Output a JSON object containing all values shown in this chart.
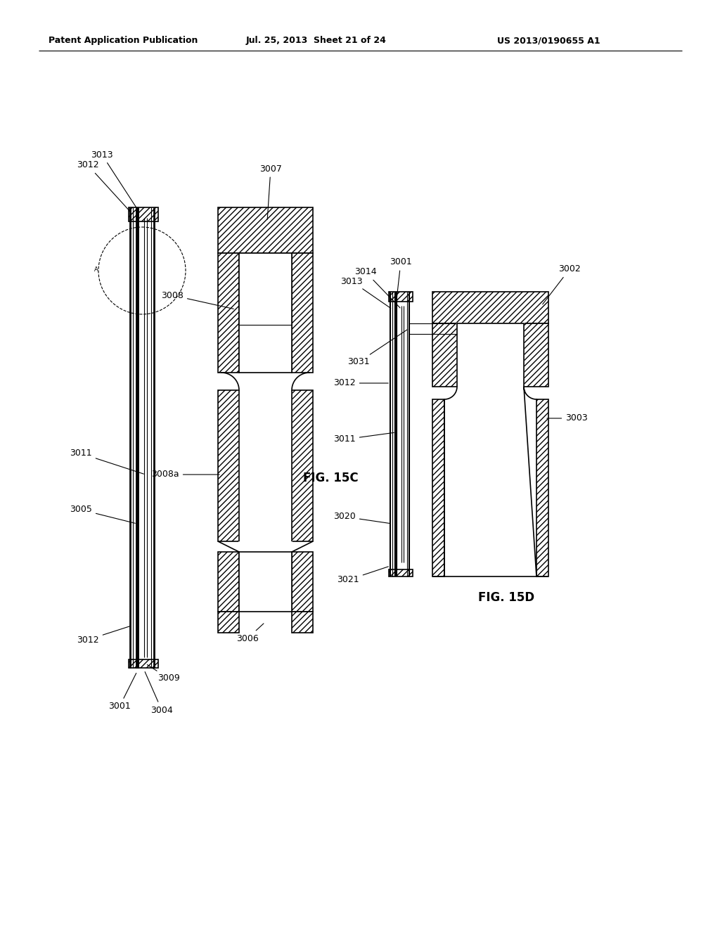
{
  "header_left": "Patent Application Publication",
  "header_mid": "Jul. 25, 2013  Sheet 21 of 24",
  "header_right": "US 2013/0190655 A1",
  "fig_c_label": "FIG. 15C",
  "fig_d_label": "FIG. 15D",
  "background": "#ffffff",
  "line_color": "#000000",
  "hatch": "////"
}
